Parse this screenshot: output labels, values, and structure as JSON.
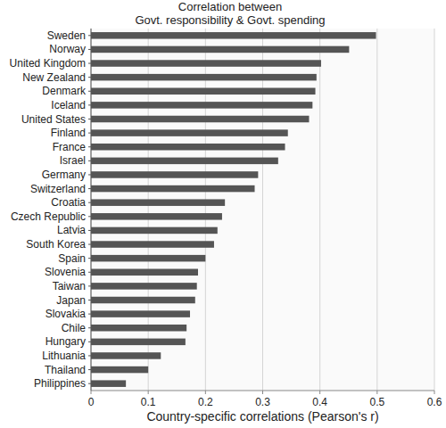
{
  "chart_data": {
    "type": "bar",
    "orientation": "horizontal",
    "title": "Correlation between\nGovt. responsibility & Govt. spending",
    "x_label": "Country-specific correlations (Pearson's r)",
    "categories": [
      "Sweden",
      "Norway",
      "United Kingdom",
      "New Zealand",
      "Denmark",
      "Iceland",
      "United States",
      "Finland",
      "France",
      "Israel",
      "Germany",
      "Switzerland",
      "Croatia",
      "Czech Republic",
      "Latvia",
      "South Korea",
      "Spain",
      "Slovenia",
      "Taiwan",
      "Japan",
      "Slovakia",
      "Chile",
      "Hungary",
      "Lithuania",
      "Thailand",
      "Philippines"
    ],
    "values": [
      0.498,
      0.451,
      0.402,
      0.394,
      0.392,
      0.387,
      0.381,
      0.344,
      0.339,
      0.327,
      0.292,
      0.286,
      0.234,
      0.229,
      0.221,
      0.215,
      0.2,
      0.187,
      0.185,
      0.182,
      0.173,
      0.167,
      0.165,
      0.122,
      0.1,
      0.061
    ],
    "color": "#555555",
    "xlim": [
      0,
      0.6
    ],
    "xticks": [
      0,
      0.1,
      0.2,
      0.3,
      0.4,
      0.5,
      0.6
    ],
    "grid": true
  }
}
